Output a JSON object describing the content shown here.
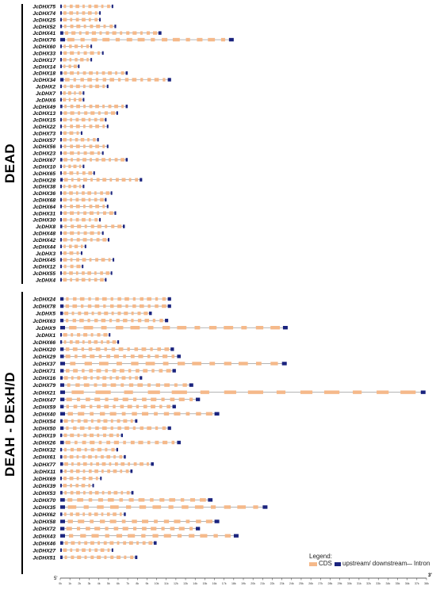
{
  "groups": [
    {
      "name": "DEAD"
    },
    {
      "name": "DEAH - DExH/D"
    }
  ],
  "legend": {
    "title": "Legend:",
    "cds": "CDS",
    "utr": "upstream/ downstream",
    "intron": "Intron"
  },
  "axis": {
    "ticks": [
      "0k",
      "1k",
      "2k",
      "3k",
      "4k",
      "5k",
      "6k",
      "7k",
      "8k",
      "9k",
      "10k",
      "11k",
      "12k",
      "13k",
      "14k",
      "15k",
      "16k",
      "17k",
      "18k",
      "19k",
      "20k",
      "21k",
      "22k",
      "23k",
      "24k",
      "25k",
      "26k",
      "27k",
      "28k",
      "29k",
      "30k",
      "31k",
      "32k",
      "33k",
      "34k",
      "35k",
      "36k",
      "37k",
      "38k"
    ],
    "five_prime": "5'",
    "three_prime": "3'"
  },
  "colors": {
    "cds": "#f5b98a",
    "utr": "#1a237e",
    "intron": "#888888"
  },
  "chart_data": {
    "type": "gene-structure",
    "unit": "kb",
    "xlim": [
      0,
      38
    ],
    "genes": [
      {
        "name": "JcDHX75",
        "len": 5.5
      },
      {
        "name": "JcDHX74",
        "len": 4.2
      },
      {
        "name": "JcDHX25",
        "len": 4.2
      },
      {
        "name": "JcDHX52",
        "len": 5.8
      },
      {
        "name": "JcDHX41",
        "len": 10.5
      },
      {
        "name": "JcDHX76",
        "len": 18.0
      },
      {
        "name": "JcDHX60",
        "len": 3.3
      },
      {
        "name": "JcDHX33",
        "len": 4.5
      },
      {
        "name": "JcDHX17",
        "len": 3.3
      },
      {
        "name": "JcDHX14",
        "len": 2.0
      },
      {
        "name": "JcDHX18",
        "len": 7.0
      },
      {
        "name": "JcDHX34",
        "len": 11.5
      },
      {
        "name": "JcDHX2",
        "len": 5.0
      },
      {
        "name": "JcDHX7",
        "len": 2.5
      },
      {
        "name": "JcDHX6",
        "len": 2.5
      },
      {
        "name": "JcDHX49",
        "len": 7.0
      },
      {
        "name": "JcDHX13",
        "len": 6.0
      },
      {
        "name": "JcDHX15",
        "len": 4.8
      },
      {
        "name": "JcDHX22",
        "len": 5.0
      },
      {
        "name": "JcDHX73",
        "len": 2.3
      },
      {
        "name": "JcDHX57",
        "len": 4.0
      },
      {
        "name": "JcDHX56",
        "len": 5.0
      },
      {
        "name": "JcDHX23",
        "len": 4.5
      },
      {
        "name": "JcDHX67",
        "len": 7.0
      },
      {
        "name": "JcDHX10",
        "len": 2.5
      },
      {
        "name": "JcDHX65",
        "len": 3.6
      },
      {
        "name": "JcDHX28",
        "len": 8.5
      },
      {
        "name": "JcDHX38",
        "len": 2.5
      },
      {
        "name": "JcDHX36",
        "len": 5.4
      },
      {
        "name": "JcDHX68",
        "len": 4.8
      },
      {
        "name": "JcDHX64",
        "len": 5.0
      },
      {
        "name": "JcDHX31",
        "len": 5.8
      },
      {
        "name": "JcDHX30",
        "len": 4.2
      },
      {
        "name": "JcDHX8",
        "len": 6.7
      },
      {
        "name": "JcDHX48",
        "len": 4.5
      },
      {
        "name": "JcDHX42",
        "len": 5.1
      },
      {
        "name": "JcDHX44",
        "len": 2.7
      },
      {
        "name": "JcDHX3",
        "len": 2.3
      },
      {
        "name": "JcDHX45",
        "len": 5.6
      },
      {
        "name": "JcDHX12",
        "len": 2.4
      },
      {
        "name": "JcDHX55",
        "len": 5.4
      },
      {
        "name": "JcDHX4",
        "len": 4.8
      },
      {
        "name": "JcDHX24",
        "len": 11.5
      },
      {
        "name": "JcDHX78",
        "len": 11.5
      },
      {
        "name": "JcDHX5",
        "len": 9.5
      },
      {
        "name": "JcDHX63",
        "len": 11.2
      },
      {
        "name": "JcDHX9",
        "len": 23.6
      },
      {
        "name": "JcDHX1",
        "len": 5.2
      },
      {
        "name": "JcDHX66",
        "len": 6.1
      },
      {
        "name": "JcDHX20",
        "len": 11.8
      },
      {
        "name": "JcDHX29",
        "len": 12.5
      },
      {
        "name": "JcDHX37",
        "len": 23.5
      },
      {
        "name": "JcDHX71",
        "len": 12.0
      },
      {
        "name": "JcDHX16",
        "len": 8.5
      },
      {
        "name": "JcDHX79",
        "len": 13.8
      },
      {
        "name": "JcDHX21",
        "len": 37.9
      },
      {
        "name": "JcDHX47",
        "len": 14.5
      },
      {
        "name": "JcDHX59",
        "len": 12.0
      },
      {
        "name": "JcDHX40",
        "len": 16.5
      },
      {
        "name": "JcDHX54",
        "len": 8.0
      },
      {
        "name": "JcDHX50",
        "len": 11.5
      },
      {
        "name": "JcDHX19",
        "len": 6.5
      },
      {
        "name": "JcDHX26",
        "len": 12.5
      },
      {
        "name": "JcDHX32",
        "len": 6.0
      },
      {
        "name": "JcDHX61",
        "len": 6.8
      },
      {
        "name": "JcDHX77",
        "len": 9.7
      },
      {
        "name": "JcDHX11",
        "len": 7.5
      },
      {
        "name": "JcDHX69",
        "len": 4.3
      },
      {
        "name": "JcDHX39",
        "len": 3.5
      },
      {
        "name": "JcDHX53",
        "len": 7.6
      },
      {
        "name": "JcDHX70",
        "len": 15.8
      },
      {
        "name": "JcDHX35",
        "len": 21.5
      },
      {
        "name": "JcDHX62",
        "len": 6.8
      },
      {
        "name": "JcDHX58",
        "len": 16.5
      },
      {
        "name": "JcDHX72",
        "len": 14.5
      },
      {
        "name": "JcDHX43",
        "len": 18.5
      },
      {
        "name": "JcDHX46",
        "len": 10.0
      },
      {
        "name": "JcDHX27",
        "len": 5.5
      },
      {
        "name": "JcDHX51",
        "len": 8.0
      }
    ]
  }
}
